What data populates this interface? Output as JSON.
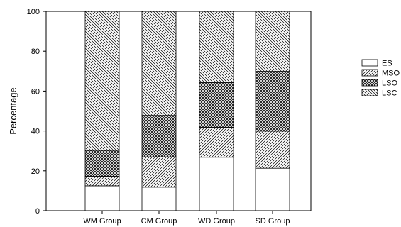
{
  "chart_data": {
    "type": "bar",
    "stacked": true,
    "categories": [
      "WM Group",
      "CM Group",
      "WD Group",
      "SD Group"
    ],
    "series": [
      {
        "name": "ES",
        "pattern": "blank",
        "values": [
          12.5,
          11.8,
          26.8,
          21.3
        ]
      },
      {
        "name": "MSO",
        "pattern": "diagonal-fine",
        "values": [
          4.8,
          15.2,
          15.0,
          18.6
        ]
      },
      {
        "name": "LSO",
        "pattern": "crosshatch",
        "values": [
          13.0,
          20.8,
          22.5,
          30.0
        ]
      },
      {
        "name": "LSC",
        "pattern": "diagonal-back",
        "values": [
          69.7,
          52.2,
          35.7,
          30.1
        ]
      }
    ],
    "ylabel": "Percentage",
    "xlabel": "",
    "ylim": [
      0,
      100
    ],
    "yticks": [
      0,
      20,
      40,
      60,
      80,
      100
    ],
    "grid": false,
    "legend_position": "right",
    "colors": {
      "fill": "#ffffff",
      "stroke": "#000000",
      "hatch": "#000000"
    }
  }
}
